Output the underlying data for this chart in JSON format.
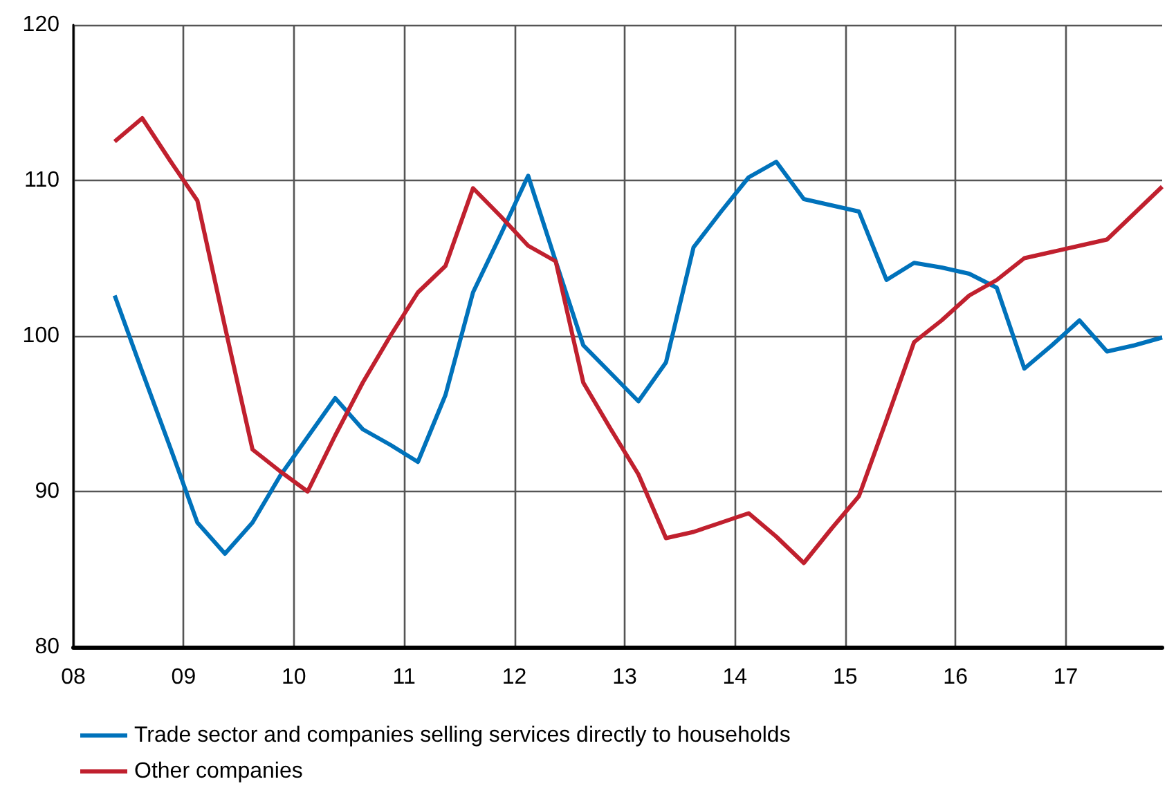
{
  "chart_data": {
    "type": "line",
    "x": [
      8.375,
      8.625,
      8.875,
      9.125,
      9.375,
      9.625,
      9.875,
      10.125,
      10.375,
      10.625,
      10.875,
      11.125,
      11.375,
      11.625,
      11.875,
      12.125,
      12.375,
      12.625,
      12.875,
      13.125,
      13.375,
      13.625,
      13.875,
      14.125,
      14.375,
      14.625,
      14.875,
      15.125,
      15.375,
      15.625,
      15.875,
      16.125,
      16.375,
      16.625,
      16.875,
      17.125,
      17.375,
      17.625,
      17.875
    ],
    "series": [
      {
        "name": "Trade sector and companies selling services directly to households",
        "color": "#0072bb",
        "values": [
          102.6,
          97.7,
          92.9,
          88.0,
          86.0,
          88.0,
          91.0,
          93.5,
          96.0,
          94.0,
          93.0,
          91.9,
          96.2,
          102.8,
          106.5,
          110.3,
          104.8,
          99.4,
          97.6,
          95.8,
          98.3,
          105.7,
          108.0,
          110.2,
          111.2,
          108.8,
          108.4,
          108.0,
          103.6,
          104.7,
          104.4,
          104.0,
          103.1,
          97.9,
          99.4,
          101.0,
          99.0,
          99.4,
          99.9
        ]
      },
      {
        "name": "Other companies",
        "color": "#c0202e",
        "values": [
          112.5,
          114.0,
          111.3,
          108.7,
          100.6,
          92.7,
          91.3,
          90.0,
          93.6,
          97.0,
          100.0,
          102.8,
          104.5,
          109.5,
          107.7,
          105.8,
          104.8,
          97.0,
          94.0,
          91.1,
          87.0,
          87.4,
          88.0,
          88.6,
          87.1,
          85.4,
          87.6,
          89.7,
          94.6,
          99.6,
          101.0,
          102.6,
          103.6,
          105.0,
          105.4,
          105.8,
          106.2,
          107.9,
          109.6
        ]
      }
    ],
    "xlim": [
      8,
      17.875
    ],
    "xticks": [
      {
        "value": 8,
        "label": "08"
      },
      {
        "value": 9,
        "label": "09"
      },
      {
        "value": 10,
        "label": "10"
      },
      {
        "value": 11,
        "label": "11"
      },
      {
        "value": 12,
        "label": "12"
      },
      {
        "value": 13,
        "label": "13"
      },
      {
        "value": 14,
        "label": "14"
      },
      {
        "value": 15,
        "label": "15"
      },
      {
        "value": 16,
        "label": "16"
      },
      {
        "value": 17,
        "label": "17"
      }
    ],
    "ylim": [
      80,
      120
    ],
    "yticks": [
      80,
      90,
      100,
      110,
      120
    ],
    "grid": true,
    "legend": "bottom left",
    "marker": "none",
    "line_style": "solid"
  }
}
